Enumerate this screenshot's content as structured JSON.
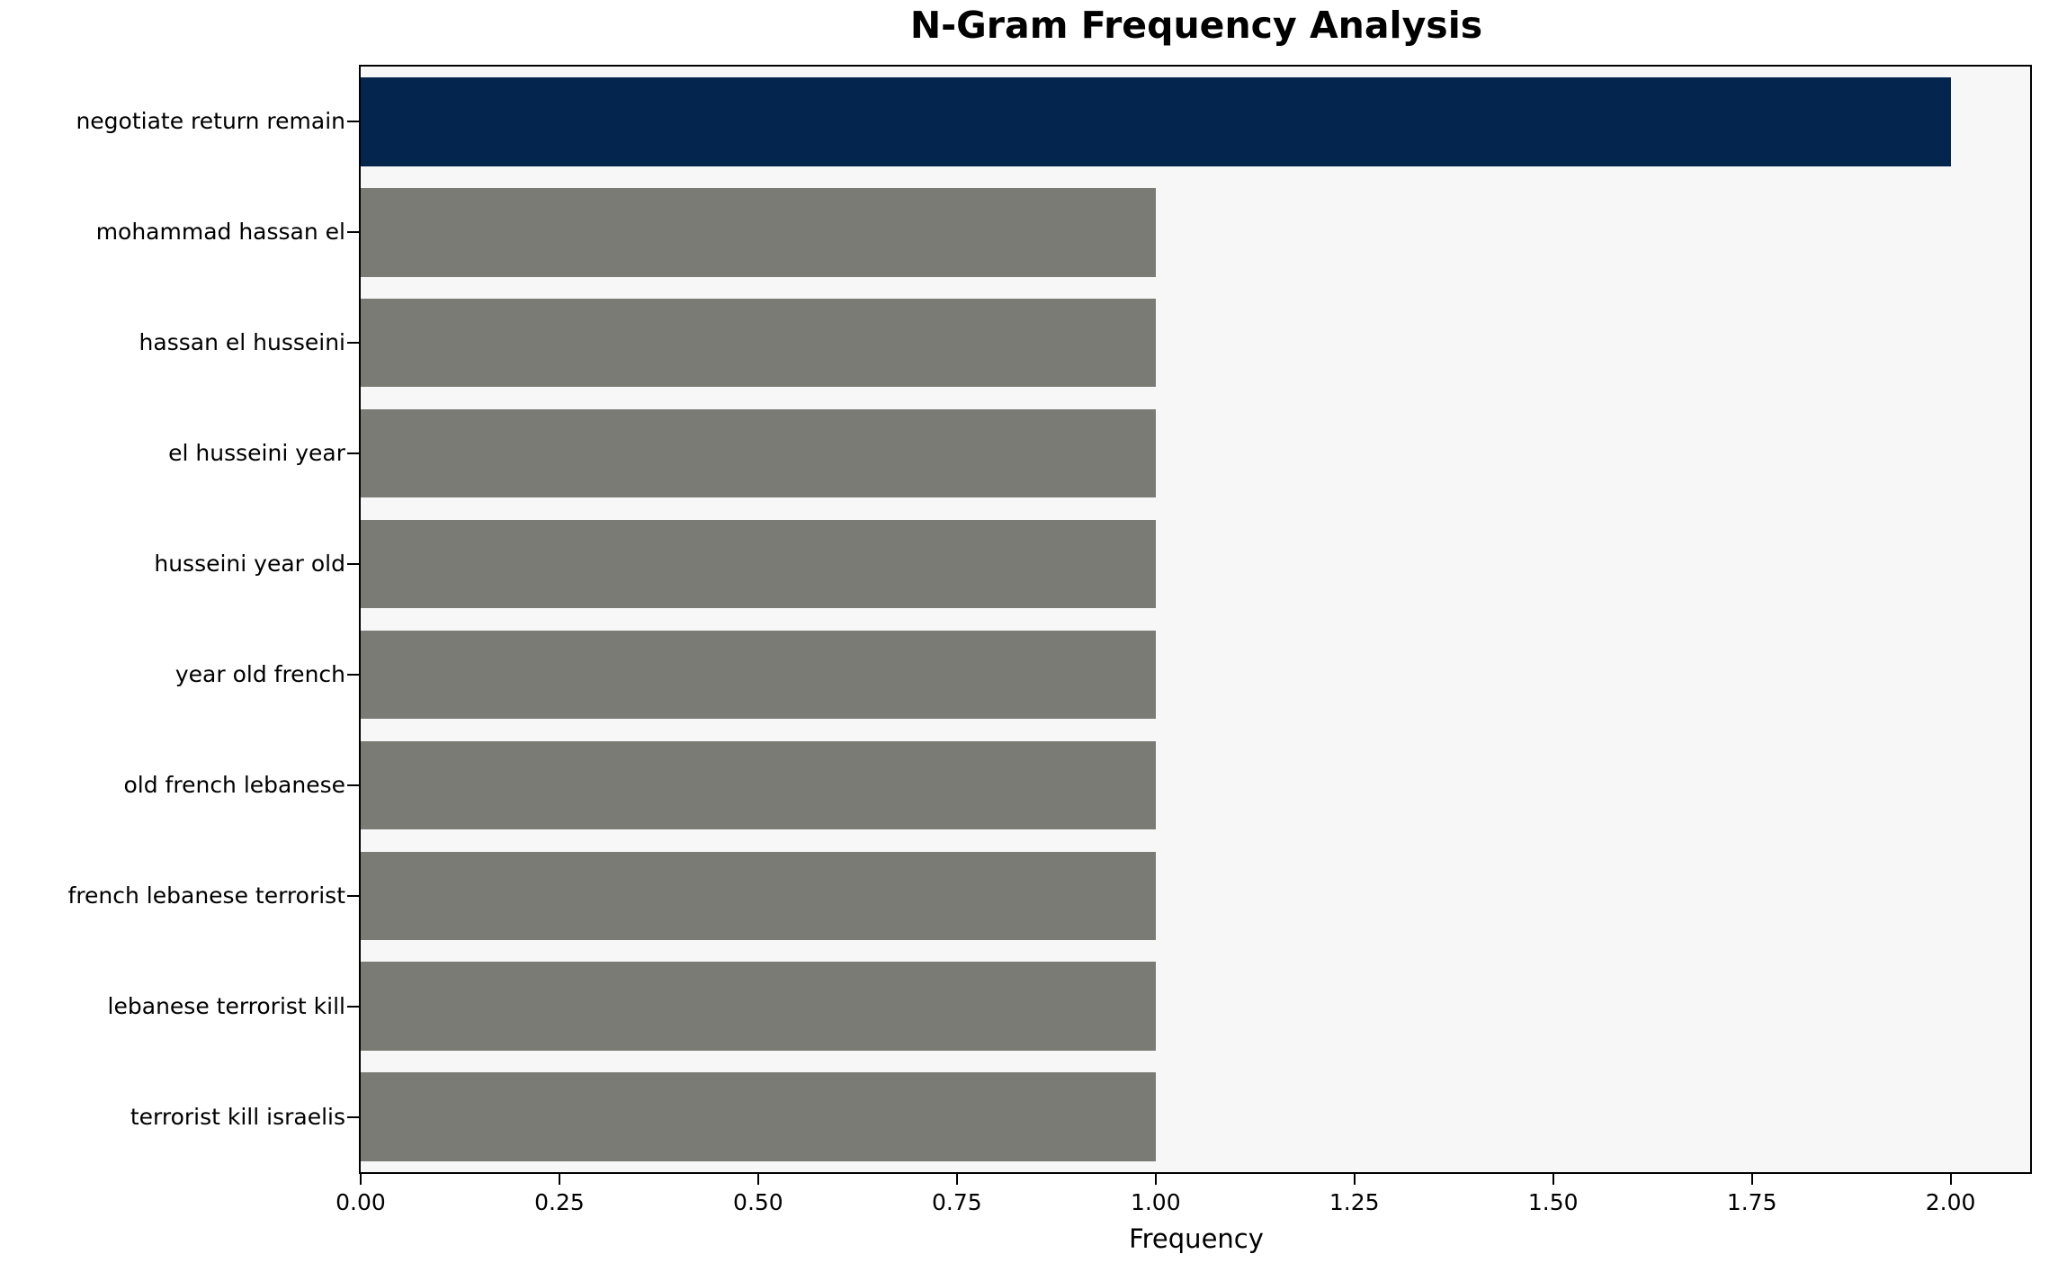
{
  "chart_data": {
    "type": "bar",
    "orientation": "horizontal",
    "title": "N-Gram Frequency Analysis",
    "xlabel": "Frequency",
    "ylabel": "",
    "categories": [
      "negotiate return remain",
      "mohammad hassan el",
      "hassan el husseini",
      "el husseini year",
      "husseini year old",
      "year old french",
      "old french lebanese",
      "french lebanese terrorist",
      "lebanese terrorist kill",
      "terrorist kill israelis"
    ],
    "values": [
      2,
      1,
      1,
      1,
      1,
      1,
      1,
      1,
      1,
      1
    ],
    "bar_colors": [
      "#03254e",
      "#7b7b76",
      "#7b7b76",
      "#7b7b76",
      "#7b7b76",
      "#7b7b76",
      "#7b7b76",
      "#7b7b76",
      "#7b7b76",
      "#7b7b76"
    ],
    "xlim": [
      0,
      2.1
    ],
    "xtick_values": [
      0,
      0.25,
      0.5,
      0.75,
      1.0,
      1.25,
      1.5,
      1.75,
      2.0
    ],
    "xtick_labels": [
      "0.00",
      "0.25",
      "0.50",
      "0.75",
      "1.00",
      "1.25",
      "1.50",
      "1.75",
      "2.00"
    ],
    "grid": false,
    "legend_position": "none",
    "panel_bg": "#f7f7f7",
    "figure_bg": "#ffffff",
    "axis_color": "#000000",
    "text_color": "#000000"
  }
}
